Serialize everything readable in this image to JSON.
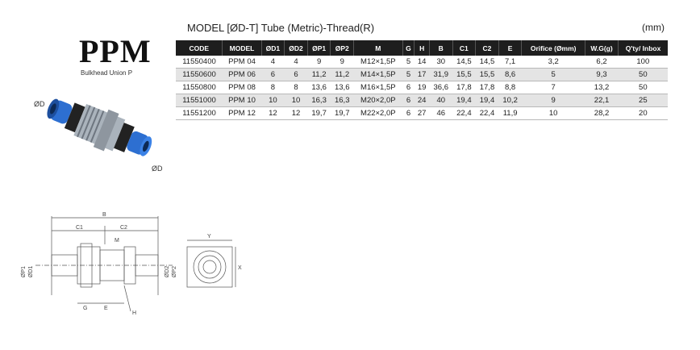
{
  "product": {
    "name": "PPM",
    "subtitle": "Bulkhead Union P",
    "photo_labels": {
      "top": "ØD",
      "bottom": "ØD"
    }
  },
  "spec": {
    "title": "MODEL [ØD-T]  Tube (Metric)-Thread(R)",
    "unit": "(mm)",
    "columns": [
      "CODE",
      "MODEL",
      "ØD1",
      "ØD2",
      "ØP1",
      "ØP2",
      "M",
      "G",
      "H",
      "B",
      "C1",
      "C2",
      "E",
      "Orifice (Ømm)",
      "W.G(g)",
      "Q'ty/ Inbox"
    ],
    "rows": [
      [
        "11550400",
        "PPM 04",
        "4",
        "4",
        "9",
        "9",
        "M12×1,5P",
        "5",
        "14",
        "30",
        "14,5",
        "14,5",
        "7,1",
        "3,2",
        "6,2",
        "100"
      ],
      [
        "11550600",
        "PPM 06",
        "6",
        "6",
        "11,2",
        "11,2",
        "M14×1,5P",
        "5",
        "17",
        "31,9",
        "15,5",
        "15,5",
        "8,6",
        "5",
        "9,3",
        "50"
      ],
      [
        "11550800",
        "PPM 08",
        "8",
        "8",
        "13,6",
        "13,6",
        "M16×1,5P",
        "6",
        "19",
        "36,6",
        "17,8",
        "17,8",
        "8,8",
        "7",
        "13,2",
        "50"
      ],
      [
        "11551000",
        "PPM 10",
        "10",
        "10",
        "16,3",
        "16,3",
        "M20×2,0P",
        "6",
        "24",
        "40",
        "19,4",
        "19,4",
        "10,2",
        "9",
        "22,1",
        "25"
      ],
      [
        "11551200",
        "PPM 12",
        "12",
        "12",
        "19,7",
        "19,7",
        "M22×2,0P",
        "6",
        "27",
        "46",
        "22,4",
        "22,4",
        "11,9",
        "10",
        "28,2",
        "20"
      ]
    ]
  },
  "drawing": {
    "labels": {
      "B": "B",
      "C1": "C1",
      "C2": "C2",
      "M": "M",
      "G": "G",
      "E": "E",
      "H": "H",
      "P1": "ØP1",
      "D1": "ØD1",
      "D2": "ØD2",
      "P2": "ØP2"
    },
    "end_view": {
      "Y": "Y",
      "X": "X"
    }
  }
}
